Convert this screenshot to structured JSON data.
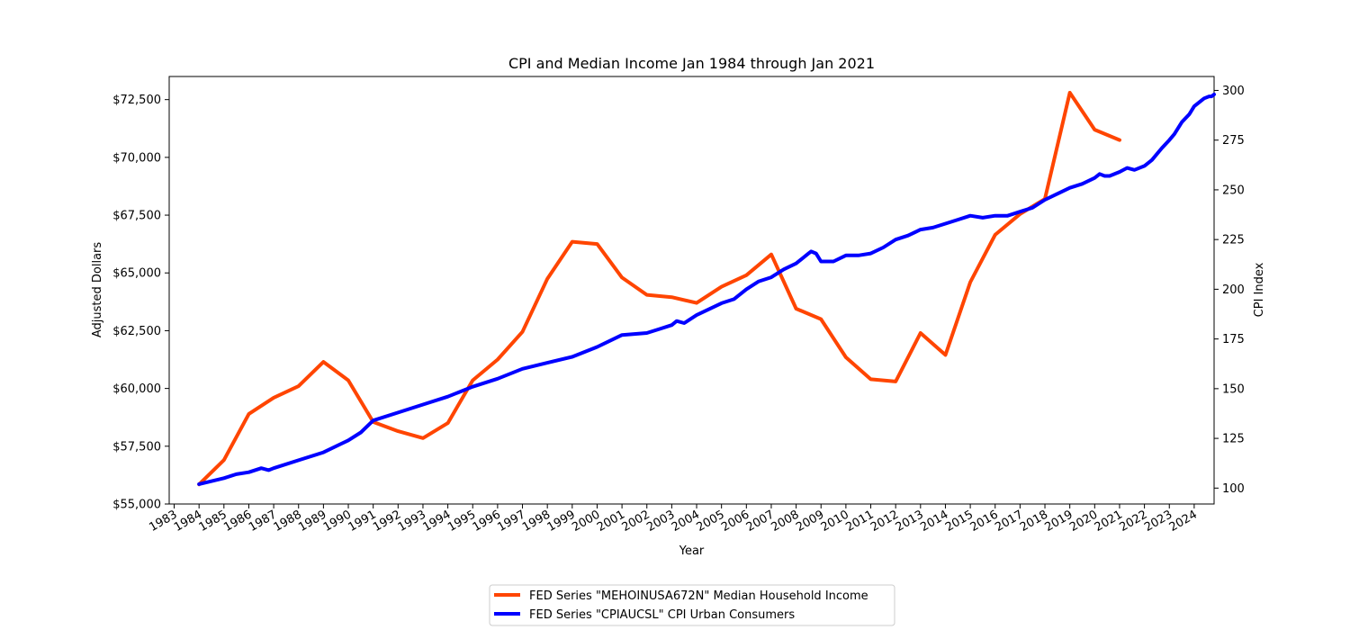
{
  "chart_data": {
    "type": "line",
    "title": "CPI and Median Income Jan 1984 through Jan 2021",
    "xlabel": "Year",
    "ylabel_left": "Adjusted Dollars",
    "ylabel_right": "CPI Index",
    "xlim": [
      1982.8,
      2024.8
    ],
    "ylim_left": [
      55000,
      73500
    ],
    "ylim_right": [
      92,
      307
    ],
    "x_ticks": [
      "1983",
      "1984",
      "1985",
      "1986",
      "1987",
      "1988",
      "1989",
      "1990",
      "1991",
      "1992",
      "1993",
      "1994",
      "1995",
      "1996",
      "1997",
      "1998",
      "1999",
      "2000",
      "2001",
      "2002",
      "2003",
      "2004",
      "2005",
      "2006",
      "2007",
      "2008",
      "2009",
      "2010",
      "2011",
      "2012",
      "2013",
      "2014",
      "2015",
      "2016",
      "2017",
      "2018",
      "2019",
      "2020",
      "2021",
      "2022",
      "2023",
      "2024"
    ],
    "y_ticks_left": [
      "$55,000",
      "$57,500",
      "$60,000",
      "$62,500",
      "$65,000",
      "$67,500",
      "$70,000",
      "$72,500"
    ],
    "y_ticks_right": [
      "100",
      "125",
      "150",
      "175",
      "200",
      "225",
      "250",
      "275",
      "300"
    ],
    "grid": false,
    "legend_position": "bottom-center",
    "series": [
      {
        "name": "FED Series \"MEHOINUSA672N\" Median Household Income",
        "axis": "left",
        "color": "#ff4500",
        "x": [
          1984,
          1985,
          1986,
          1987,
          1988,
          1989,
          1990,
          1991,
          1992,
          1993,
          1994,
          1995,
          1996,
          1997,
          1998,
          1999,
          2000,
          2001,
          2002,
          2003,
          2004,
          2005,
          2006,
          2007,
          2008,
          2009,
          2010,
          2011,
          2012,
          2013,
          2014,
          2015,
          2016,
          2017,
          2018,
          2019,
          2020,
          2021
        ],
        "values": [
          55850,
          56900,
          58900,
          59600,
          60100,
          61150,
          60350,
          58550,
          58150,
          57850,
          58500,
          60350,
          61250,
          62450,
          64750,
          66350,
          66250,
          64800,
          64050,
          63950,
          63700,
          64400,
          64900,
          65800,
          63450,
          63000,
          61350,
          60400,
          60300,
          62400,
          61450,
          64600,
          66650,
          67550,
          68200,
          72800,
          71200,
          70750
        ]
      },
      {
        "name": "FED Series \"CPIAUCSL\" CPI Urban Consumers",
        "axis": "right",
        "color": "#0000ff",
        "x": [
          1984,
          1985,
          1985.5,
          1986,
          1986.5,
          1986.8,
          1987,
          1988,
          1989,
          1990,
          1990.5,
          1991,
          1992,
          1993,
          1994,
          1995,
          1996,
          1997,
          1998,
          1999,
          2000,
          2001,
          2002,
          2002.5,
          2003,
          2003.2,
          2003.5,
          2004,
          2005,
          2005.5,
          2006,
          2006.5,
          2007,
          2007.5,
          2008,
          2008.5,
          2008.6,
          2008.8,
          2009,
          2009.5,
          2010,
          2010.5,
          2011,
          2011.5,
          2012,
          2012.5,
          2013,
          2013.5,
          2014,
          2014.5,
          2015,
          2015.5,
          2016,
          2016.5,
          2017,
          2017.5,
          2018,
          2018.5,
          2019,
          2019.5,
          2020,
          2020.2,
          2020.4,
          2020.6,
          2021,
          2021.3,
          2021.6,
          2022,
          2022.3,
          2022.5,
          2022.7,
          2023,
          2023.2,
          2023.5,
          2023.8,
          2024,
          2024.2,
          2024.4,
          2024.6,
          2024.7,
          2024.8
        ],
        "values": [
          102,
          105,
          107,
          108,
          110,
          109,
          110,
          114,
          118,
          124,
          128,
          134,
          138,
          142,
          146,
          151,
          155,
          160,
          163,
          166,
          171,
          177,
          178,
          180,
          182,
          184,
          183,
          187,
          193,
          195,
          200,
          204,
          206,
          210,
          213,
          218,
          219,
          218,
          214,
          214,
          217,
          217,
          218,
          221,
          225,
          227,
          230,
          231,
          233,
          235,
          237,
          236,
          237,
          237,
          239,
          241,
          245,
          248,
          251,
          253,
          256,
          258,
          257,
          257,
          259,
          261,
          260,
          262,
          265,
          268,
          271,
          275,
          278,
          284,
          288,
          292,
          294,
          296,
          297,
          297,
          298
        ]
      }
    ]
  }
}
